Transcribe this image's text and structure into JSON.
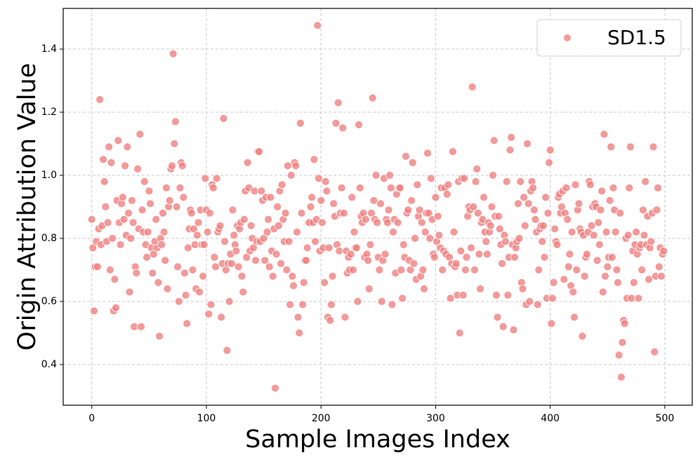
{
  "chart_data": {
    "type": "scatter",
    "xlabel": "Sample Images Index",
    "ylabel": "Origin Attribution Value",
    "xlim": [
      -24.95,
      523.95
    ],
    "ylim": [
      0.271,
      1.529
    ],
    "xticks": [
      0,
      100,
      200,
      300,
      400,
      500
    ],
    "yticks": [
      0.4,
      0.6,
      0.8,
      {
        "value": 1,
        "label": "1.0"
      },
      1.2,
      1.4
    ],
    "grid": true,
    "legend": "upper right",
    "series": [
      {
        "name": "SD1.5",
        "color": "#f08080",
        "x": [
          0,
          1,
          2,
          3,
          4,
          5,
          6,
          7,
          8,
          9,
          10,
          11,
          12,
          13,
          14,
          15,
          16,
          17,
          18,
          19,
          20,
          21,
          22,
          23,
          24,
          25,
          26,
          27,
          28,
          29,
          30,
          31,
          32,
          33,
          34,
          35,
          36,
          37,
          38,
          39,
          40,
          41,
          42,
          43,
          44,
          45,
          46,
          47,
          48,
          49,
          50,
          51,
          52,
          53,
          54,
          55,
          56,
          57,
          58,
          59,
          60,
          61,
          62,
          63,
          64,
          65,
          66,
          67,
          68,
          69,
          70,
          71,
          72,
          73,
          74,
          75,
          76,
          77,
          78,
          79,
          80,
          81,
          82,
          83,
          84,
          85,
          86,
          87,
          88,
          89,
          90,
          91,
          92,
          93,
          94,
          95,
          96,
          97,
          98,
          99,
          100,
          101,
          102,
          103,
          104,
          105,
          106,
          107,
          108,
          109,
          110,
          111,
          112,
          113,
          114,
          115,
          116,
          117,
          118,
          119,
          120,
          121,
          122,
          123,
          124,
          125,
          126,
          127,
          128,
          129,
          130,
          131,
          132,
          133,
          134,
          135,
          136,
          137,
          138,
          139,
          140,
          141,
          142,
          143,
          144,
          145,
          146,
          147,
          148,
          149,
          150,
          151,
          152,
          153,
          154,
          155,
          156,
          157,
          158,
          159,
          160,
          161,
          162,
          163,
          164,
          165,
          166,
          167,
          168,
          169,
          170,
          171,
          172,
          173,
          174,
          175,
          176,
          177,
          178,
          179,
          180,
          181,
          182,
          183,
          184,
          185,
          186,
          187,
          188,
          189,
          190,
          191,
          192,
          193,
          194,
          195,
          196,
          197,
          198,
          199,
          200,
          201,
          202,
          203,
          204,
          205,
          206,
          207,
          208,
          209,
          210,
          211,
          212,
          213,
          214,
          215,
          216,
          217,
          218,
          219,
          220,
          221,
          222,
          223,
          224,
          225,
          226,
          227,
          228,
          229,
          230,
          231,
          232,
          233,
          234,
          235,
          236,
          237,
          238,
          239,
          240,
          241,
          242,
          243,
          244,
          245,
          246,
          247,
          248,
          249,
          250,
          251,
          252,
          253,
          254,
          255,
          256,
          257,
          258,
          259,
          260,
          261,
          262,
          263,
          264,
          265,
          266,
          267,
          268,
          269,
          270,
          271,
          272,
          273,
          274,
          275,
          276,
          277,
          278,
          279,
          280,
          281,
          282,
          283,
          284,
          285,
          286,
          287,
          288,
          289,
          290,
          291,
          292,
          293,
          294,
          295,
          296,
          297,
          298,
          299,
          300,
          301,
          302,
          303,
          304,
          305,
          306,
          307,
          308,
          309,
          310,
          311,
          312,
          313,
          314,
          315,
          316,
          317,
          318,
          319,
          320,
          321,
          322,
          323,
          324,
          325,
          326,
          327,
          328,
          329,
          330,
          331,
          332,
          333,
          334,
          335,
          336,
          337,
          338,
          339,
          340,
          341,
          342,
          343,
          344,
          345,
          346,
          347,
          348,
          349,
          350,
          351,
          352,
          353,
          354,
          355,
          356,
          357,
          358,
          359,
          360,
          361,
          362,
          363,
          364,
          365,
          366,
          367,
          368,
          369,
          370,
          371,
          372,
          373,
          374,
          375,
          376,
          377,
          378,
          379,
          380,
          381,
          382,
          383,
          384,
          385,
          386,
          387,
          388,
          389,
          390,
          391,
          392,
          393,
          394,
          395,
          396,
          397,
          398,
          399,
          400,
          401,
          402,
          403,
          404,
          405,
          406,
          407,
          408,
          409,
          410,
          411,
          412,
          413,
          414,
          415,
          416,
          417,
          418,
          419,
          420,
          421,
          422,
          423,
          424,
          425,
          426,
          427,
          428,
          429,
          430,
          431,
          432,
          433,
          434,
          435,
          436,
          437,
          438,
          439,
          440,
          441,
          442,
          443,
          444,
          445,
          446,
          447,
          448,
          449,
          450,
          451,
          452,
          453,
          454,
          455,
          456,
          457,
          458,
          459,
          460,
          461,
          462,
          463,
          464,
          465,
          466,
          467,
          468,
          469,
          470,
          471,
          472,
          473,
          474,
          475,
          476,
          477,
          478,
          479,
          480,
          481,
          482,
          483,
          484,
          485,
          486,
          487,
          488,
          489,
          490,
          491,
          492,
          493,
          494,
          495,
          496,
          497,
          498,
          499
        ],
        "values": [
          0.86,
          0.77,
          0.57,
          0.71,
          0.79,
          0.71,
          0.83,
          1.24,
          0.78,
          0.84,
          1.05,
          0.98,
          0.9,
          0.79,
          0.85,
          1.09,
          0.7,
          1.04,
          0.8,
          0.57,
          0.67,
          0.58,
          0.92,
          1.11,
          0.85,
          0.78,
          0.91,
          0.93,
          0.86,
          1.03,
          0.81,
          1.09,
          0.88,
          0.63,
          0.8,
          0.92,
          0.85,
          0.52,
          0.71,
          0.69,
          1.02,
          0.83,
          1.13,
          0.52,
          0.89,
          0.82,
          0.98,
          0.78,
          0.74,
          0.82,
          0.95,
          0.91,
          0.77,
          0.69,
          0.75,
          0.79,
          0.86,
          0.77,
          0.66,
          0.49,
          0.8,
          0.78,
          0.88,
          0.82,
          0.73,
          0.96,
          0.64,
          0.9,
          0.92,
          1.02,
          1.03,
          1.385,
          1.1,
          1.17,
          0.9,
          0.71,
          0.6,
          0.96,
          1.04,
          1.03,
          0.93,
          0.69,
          0.62,
          0.53,
          0.77,
          0.83,
          0.89,
          0.88,
          0.7,
          0.83,
          0.78,
          0.64,
          0.81,
          0.85,
          0.63,
          0.89,
          0.78,
          0.68,
          0.78,
          0.99,
          0.89,
          0.82,
          0.56,
          0.88,
          0.59,
          0.97,
          0.96,
          0.74,
          0.71,
          0.99,
          0.82,
          0.83,
          0.84,
          0.55,
          0.72,
          1.18,
          0.79,
          0.7,
          0.445,
          0.72,
          0.6,
          0.75,
          0.72,
          0.89,
          0.81,
          0.78,
          0.76,
          0.84,
          0.71,
          0.83,
          0.85,
          0.68,
          0.63,
          0.86,
          0.95,
          0.74,
          1.04,
          0.96,
          0.76,
          0.84,
          0.8,
          0.77,
          0.95,
          0.73,
          0.79,
          1.075,
          1.075,
          0.79,
          0.95,
          0.92,
          0.8,
          0.73,
          0.93,
          0.82,
          0.86,
          0.71,
          0.93,
          0.76,
          0.68,
          0.83,
          0.325,
          0.75,
          0.9,
          0.84,
          0.95,
          0.72,
          0.97,
          0.86,
          0.79,
          0.88,
          0.7,
          1.03,
          0.79,
          0.59,
          1.0,
          0.68,
          0.65,
          1.04,
          1.03,
          0.82,
          0.55,
          0.5,
          1.165,
          0.88,
          0.59,
          0.66,
          0.73,
          0.73,
          0.77,
          0.85,
          0.85,
          0.9,
          0.93,
          0.85,
          1.05,
          0.79,
          0.86,
          1.475,
          0.99,
          0.76,
          0.92,
          0.85,
          0.77,
          0.66,
          0.98,
          0.95,
          0.55,
          0.77,
          0.54,
          0.59,
          0.68,
          0.91,
          0.87,
          1.165,
          0.78,
          1.23,
          0.76,
          0.88,
          0.96,
          1.15,
          0.88,
          0.55,
          0.76,
          0.69,
          0.74,
          0.7,
          0.75,
          0.93,
          0.7,
          0.82,
          0.77,
          0.77,
          0.6,
          1.16,
          0.96,
          0.87,
          0.85,
          0.88,
          0.74,
          0.86,
          0.75,
          0.73,
          0.64,
          0.78,
          0.88,
          1.245,
          0.92,
          0.86,
          1.0,
          0.85,
          0.74,
          0.7,
          0.91,
          0.6,
          0.73,
          0.99,
          0.75,
          0.86,
          0.85,
          0.89,
          1.0,
          0.96,
          0.59,
          0.82,
          0.86,
          0.69,
          0.94,
          0.85,
          0.96,
          0.96,
          0.7,
          0.61,
          0.78,
          0.74,
          1.06,
          0.88,
          0.89,
          0.73,
          0.7,
          0.92,
          1.04,
          0.72,
          0.8,
          0.67,
          0.97,
          0.87,
          0.89,
          0.68,
          0.85,
          0.7,
          0.64,
          0.82,
          0.88,
          1.07,
          0.88,
          0.8,
          0.99,
          0.86,
          0.75,
          0.74,
          0.93,
          0.79,
          0.87,
          0.81,
          0.77,
          0.96,
          0.7,
          0.76,
          0.96,
          0.75,
          0.94,
          0.97,
          0.74,
          0.61,
          0.72,
          1.075,
          0.82,
          0.71,
          0.72,
          0.62,
          0.98,
          0.5,
          0.76,
          0.99,
          0.62,
          0.99,
          0.7,
          0.74,
          0.87,
          0.9,
          0.89,
          0.77,
          1.28,
          0.9,
          0.7,
          0.98,
          1.02,
          0.88,
          0.75,
          0.64,
          0.85,
          0.86,
          0.93,
          0.82,
          0.79,
          0.75,
          0.85,
          0.82,
          0.84,
          0.9,
          1.0,
          1.11,
          0.87,
          0.62,
          0.55,
          0.87,
          0.83,
          0.78,
          0.72,
          0.52,
          0.81,
          0.79,
          0.98,
          0.62,
          0.74,
          1.08,
          1.12,
          0.78,
          0.51,
          0.74,
          0.77,
          0.79,
          0.91,
          0.8,
          0.98,
          0.66,
          0.64,
          0.93,
          0.84,
          0.59,
          1.1,
          0.91,
          0.6,
          0.95,
          0.98,
          0.96,
          0.89,
          0.86,
          0.82,
          0.59,
          0.7,
          0.83,
          0.84,
          0.79,
          0.84,
          0.74,
          0.93,
          0.61,
          0.88,
          1.04,
          1.08,
          0.53,
          0.61,
          0.66,
          0.83,
          0.79,
          0.78,
          0.93,
          0.94,
          0.88,
          0.9,
          0.95,
          0.67,
          0.88,
          0.96,
          0.86,
          0.71,
          0.75,
          0.65,
          0.82,
          0.63,
          0.55,
          0.97,
          0.7,
          0.89,
          0.91,
          0.83,
          0.82,
          0.49,
          0.81,
          0.68,
          0.74,
          0.75,
          0.82,
          0.98,
          0.97,
          0.84,
          0.9,
          0.81,
          0.91,
          0.9,
          0.73,
          0.85,
          0.78,
          0.89,
          0.95,
          0.63,
          1.13,
          0.68,
          0.82,
          0.71,
          0.74,
          0.92,
          1.09,
          0.74,
          0.96,
          0.89,
          0.82,
          0.7,
          0.66,
          0.43,
          0.88,
          0.36,
          0.47,
          0.54,
          0.53,
          0.8,
          0.61,
          0.81,
          0.96,
          1.09,
          0.61,
          0.76,
          0.66,
          0.78,
          0.82,
          0.75,
          0.61,
          0.77,
          0.78,
          0.7,
          0.89,
          0.81,
          0.98,
          0.78,
          0.87,
          0.67,
          0.77,
          0.79,
          0.88,
          1.09,
          0.44,
          0.68,
          0.89,
          0.96,
          0.71,
          0.77,
          0.68,
          0.75,
          0.76
        ]
      }
    ]
  }
}
